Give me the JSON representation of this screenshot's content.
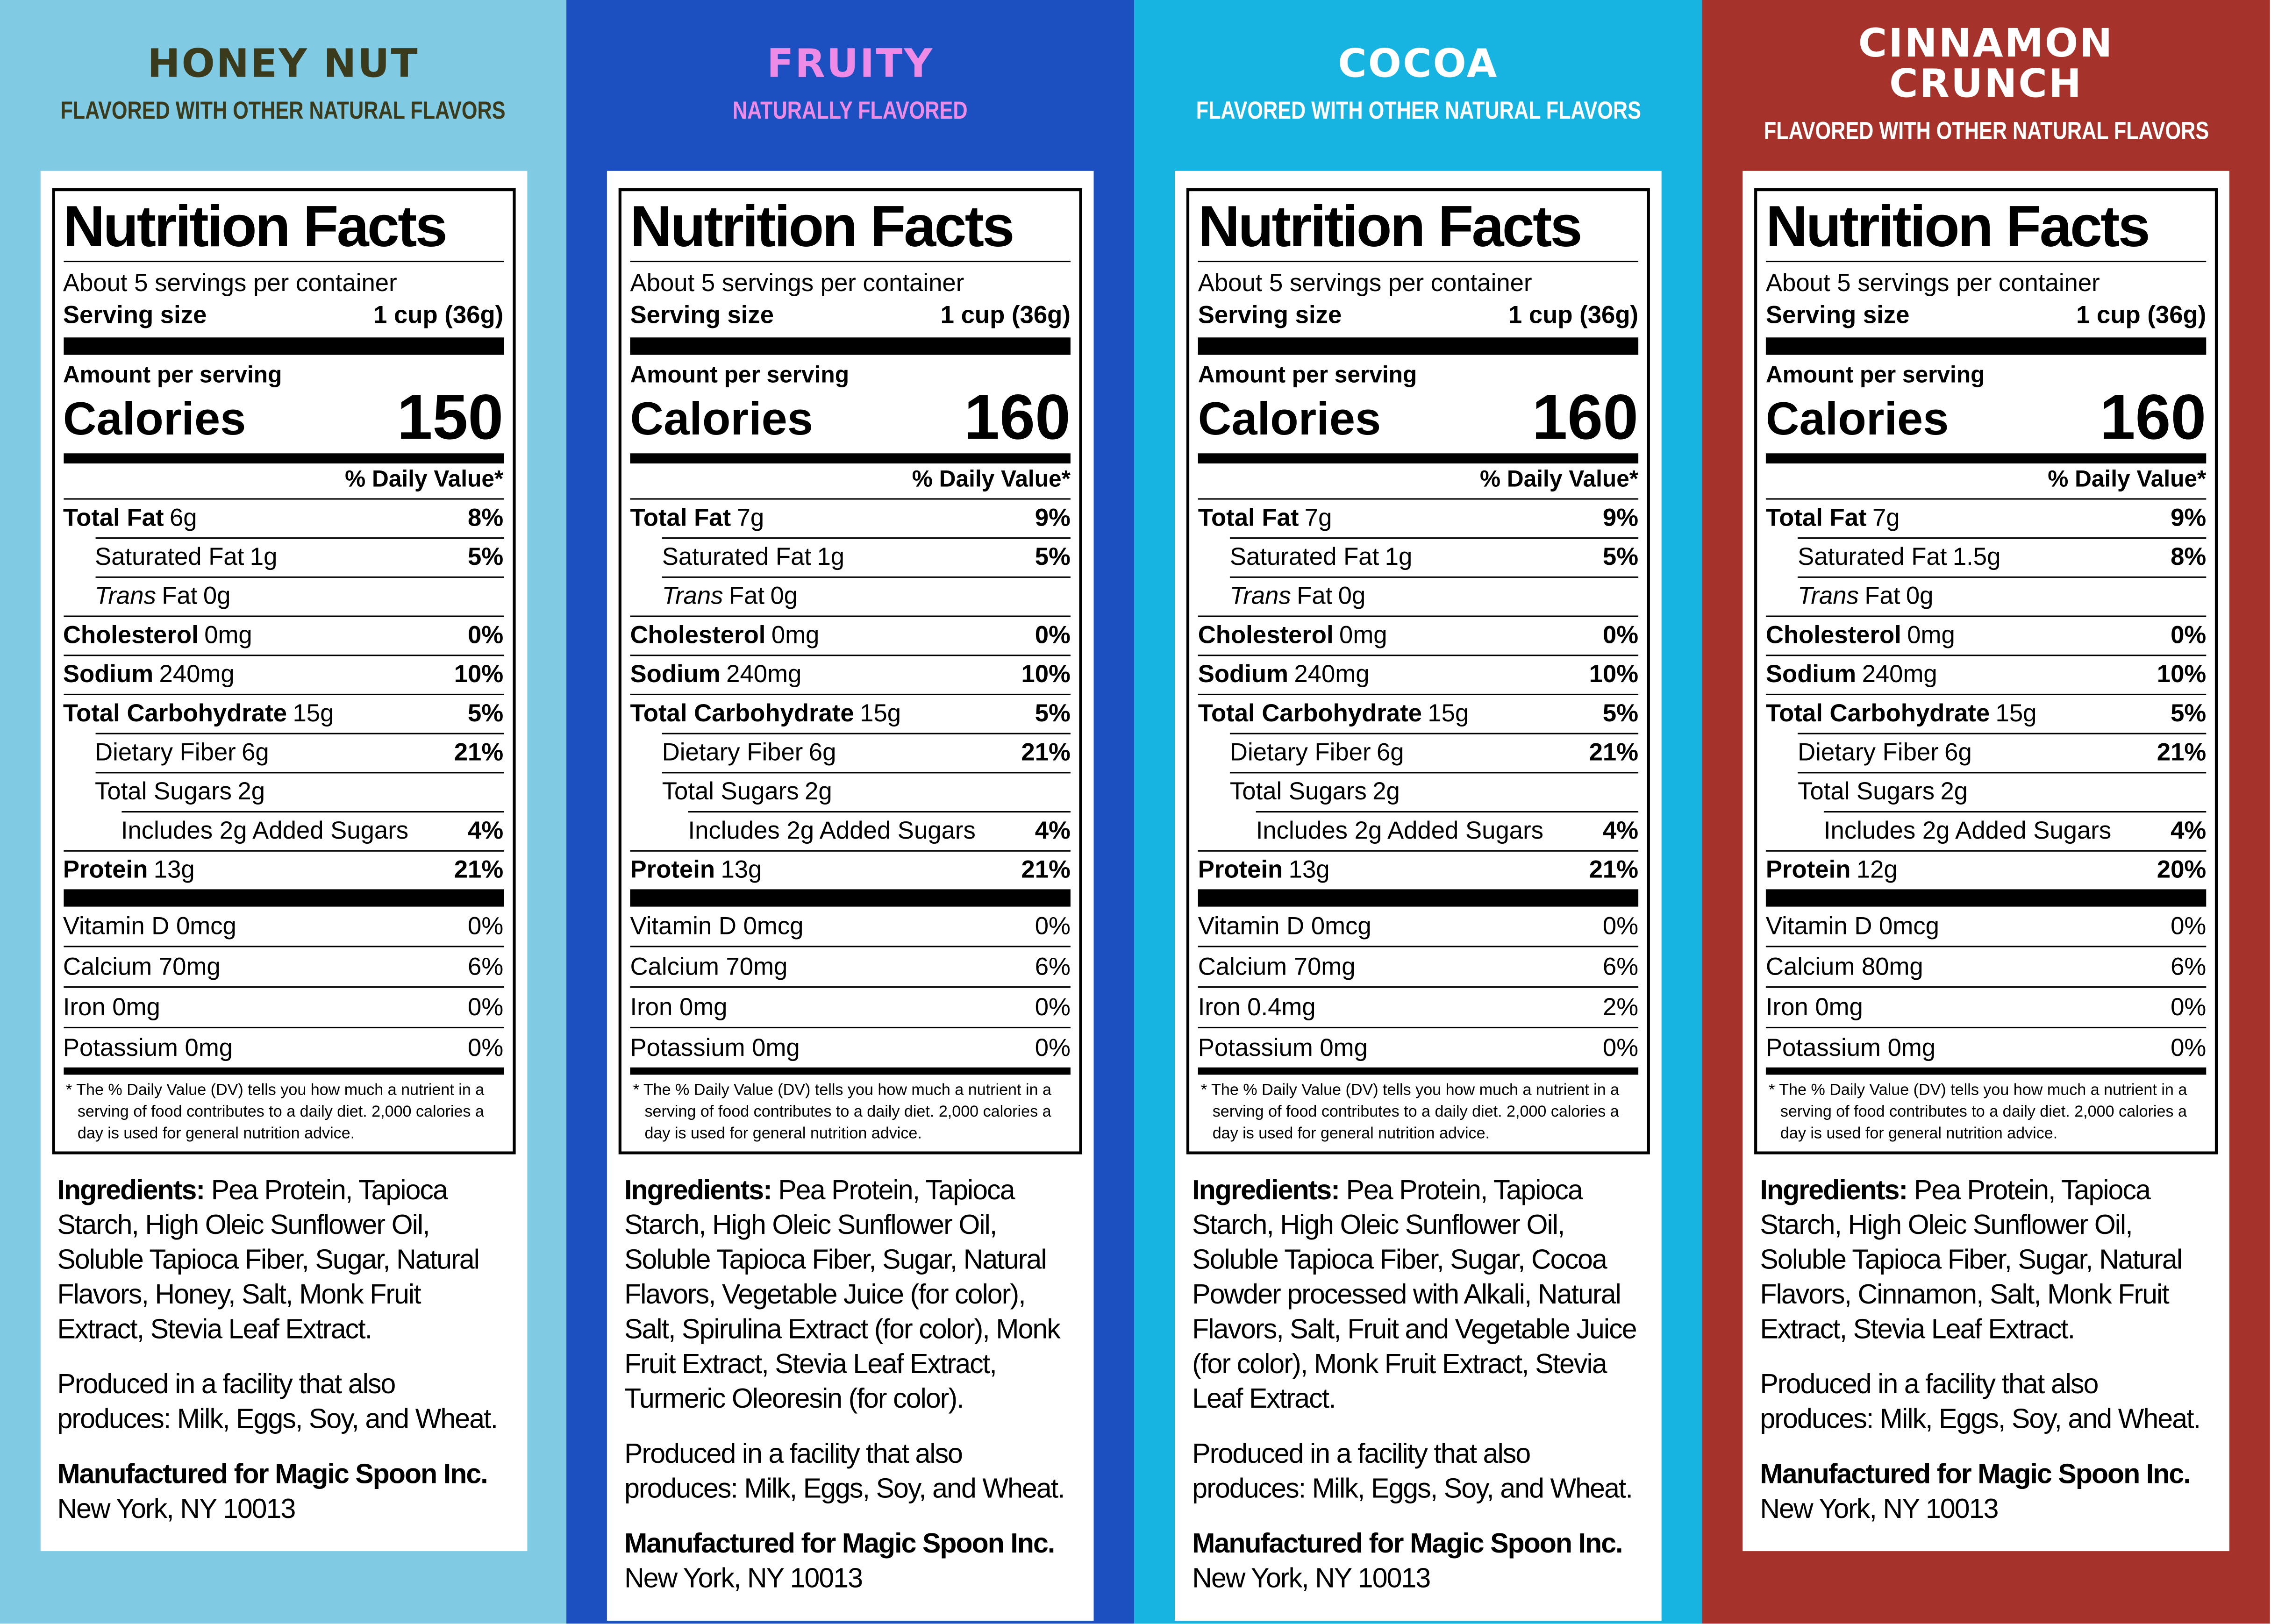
{
  "panels": [
    {
      "title": "HONEY NUT",
      "subtitle": "FLAVORED WITH OTHER NATURAL FLAVORS",
      "label": {
        "heading": "Nutrition Facts",
        "servings": "About 5 servings per container",
        "serving_size_label": "Serving size",
        "serving_size": "1 cup (36g)",
        "amount_per_serving": "Amount per serving",
        "calories_label": "Calories",
        "calories": 150,
        "dv_header": "% Daily Value*",
        "nutrients": [
          {
            "name": "Total Fat",
            "amount": "6g",
            "dv": "8%",
            "sub": [
              {
                "name": "Saturated Fat",
                "amount": "1g",
                "dv": "5%"
              },
              {
                "name_italic": "Trans",
                "name": "Fat",
                "amount": "0g"
              }
            ]
          },
          {
            "name": "Cholesterol",
            "amount": "0mg",
            "dv": "0%"
          },
          {
            "name": "Sodium",
            "amount": "240mg",
            "dv": "10%"
          },
          {
            "name": "Total Carbohydrate",
            "amount": "15g",
            "dv": "5%",
            "sub": [
              {
                "name": "Dietary Fiber",
                "amount": "6g",
                "dv": "21%"
              },
              {
                "name": "Total Sugars",
                "amount": "2g",
                "sub": [
                  {
                    "name": "Includes 2g Added Sugars",
                    "dv": "4%"
                  }
                ]
              }
            ]
          },
          {
            "name": "Protein",
            "amount": "13g",
            "dv": "21%"
          }
        ],
        "micros": [
          {
            "name": "Vitamin D 0mcg",
            "dv": "0%"
          },
          {
            "name": "Calcium 70mg",
            "dv": "6%"
          },
          {
            "name": "Iron 0mg",
            "dv": "0%"
          },
          {
            "name": "Potassium 0mg",
            "dv": "0%"
          }
        ],
        "footnote": "* The % Daily Value (DV) tells you how much a nutrient in a serving of food contributes to a daily diet. 2,000 calories a day is used for general nutrition advice."
      },
      "ingredients_label": "Ingredients:",
      "ingredients": "Pea Protein, Tapioca Starch, High Oleic Sunflower Oil, Soluble Tapioca Fiber, Sugar, Natural Flavors, Honey, Salt, Monk Fruit Extract, Stevia Leaf Extract.",
      "facility": "Produced in a facility that also produces: Milk, Eggs, Soy, and Wheat.",
      "manufacturer": "Manufactured for Magic Spoon Inc.",
      "address": "New York, NY 10013"
    },
    {
      "title": "FRUITY",
      "subtitle": "NATURALLY FLAVORED",
      "label": {
        "heading": "Nutrition Facts",
        "servings": "About 5 servings per container",
        "serving_size_label": "Serving size",
        "serving_size": "1 cup (36g)",
        "amount_per_serving": "Amount per serving",
        "calories_label": "Calories",
        "calories": 160,
        "dv_header": "% Daily Value*",
        "nutrients": [
          {
            "name": "Total Fat",
            "amount": "7g",
            "dv": "9%",
            "sub": [
              {
                "name": "Saturated Fat",
                "amount": "1g",
                "dv": "5%"
              },
              {
                "name_italic": "Trans",
                "name": "Fat",
                "amount": "0g"
              }
            ]
          },
          {
            "name": "Cholesterol",
            "amount": "0mg",
            "dv": "0%"
          },
          {
            "name": "Sodium",
            "amount": "240mg",
            "dv": "10%"
          },
          {
            "name": "Total Carbohydrate",
            "amount": "15g",
            "dv": "5%",
            "sub": [
              {
                "name": "Dietary Fiber",
                "amount": "6g",
                "dv": "21%"
              },
              {
                "name": "Total Sugars",
                "amount": "2g",
                "sub": [
                  {
                    "name": "Includes 2g Added Sugars",
                    "dv": "4%"
                  }
                ]
              }
            ]
          },
          {
            "name": "Protein",
            "amount": "13g",
            "dv": "21%"
          }
        ],
        "micros": [
          {
            "name": "Vitamin D 0mcg",
            "dv": "0%"
          },
          {
            "name": "Calcium 70mg",
            "dv": "6%"
          },
          {
            "name": "Iron 0mg",
            "dv": "0%"
          },
          {
            "name": "Potassium 0mg",
            "dv": "0%"
          }
        ],
        "footnote": "* The % Daily Value (DV) tells you how much a nutrient in a serving of food contributes to a daily diet. 2,000 calories a day is used for general nutrition advice."
      },
      "ingredients_label": "Ingredients:",
      "ingredients": "Pea Protein, Tapioca Starch, High Oleic Sunflower Oil, Soluble Tapioca Fiber, Sugar, Natural Flavors, Vegetable Juice (for color), Salt, Spirulina Extract (for color), Monk Fruit Extract, Stevia Leaf Extract, Turmeric Oleoresin (for color).",
      "facility": "Produced in a facility that also produces: Milk, Eggs, Soy, and Wheat.",
      "manufacturer": "Manufactured for Magic Spoon Inc.",
      "address": "New York, NY 10013"
    },
    {
      "title": "COCOA",
      "subtitle": "FLAVORED WITH OTHER NATURAL FLAVORS",
      "label": {
        "heading": "Nutrition Facts",
        "servings": "About 5 servings per container",
        "serving_size_label": "Serving size",
        "serving_size": "1 cup (36g)",
        "amount_per_serving": "Amount per serving",
        "calories_label": "Calories",
        "calories": 160,
        "dv_header": "% Daily Value*",
        "nutrients": [
          {
            "name": "Total Fat",
            "amount": "7g",
            "dv": "9%",
            "sub": [
              {
                "name": "Saturated Fat",
                "amount": "1g",
                "dv": "5%"
              },
              {
                "name_italic": "Trans",
                "name": "Fat",
                "amount": "0g"
              }
            ]
          },
          {
            "name": "Cholesterol",
            "amount": "0mg",
            "dv": "0%"
          },
          {
            "name": "Sodium",
            "amount": "240mg",
            "dv": "10%"
          },
          {
            "name": "Total Carbohydrate",
            "amount": "15g",
            "dv": "5%",
            "sub": [
              {
                "name": "Dietary Fiber",
                "amount": "6g",
                "dv": "21%"
              },
              {
                "name": "Total Sugars",
                "amount": "2g",
                "sub": [
                  {
                    "name": "Includes 2g Added Sugars",
                    "dv": "4%"
                  }
                ]
              }
            ]
          },
          {
            "name": "Protein",
            "amount": "13g",
            "dv": "21%"
          }
        ],
        "micros": [
          {
            "name": "Vitamin D 0mcg",
            "dv": "0%"
          },
          {
            "name": "Calcium 70mg",
            "dv": "6%"
          },
          {
            "name": "Iron 0.4mg",
            "dv": "2%"
          },
          {
            "name": "Potassium 0mg",
            "dv": "0%"
          }
        ],
        "footnote": "* The % Daily Value (DV) tells you how much a nutrient in a serving of food contributes to a daily diet. 2,000 calories a day is used for general nutrition advice."
      },
      "ingredients_label": "Ingredients:",
      "ingredients": "Pea Protein, Tapioca Starch, High Oleic Sunflower Oil, Soluble Tapioca Fiber, Sugar, Cocoa Powder processed with Alkali, Natural Flavors, Salt, Fruit and Vegetable Juice (for color), Monk Fruit Extract, Stevia Leaf Extract.",
      "facility": "Produced in a facility that also produces: Milk, Eggs, Soy, and Wheat.",
      "manufacturer": "Manufactured for Magic Spoon Inc.",
      "address": "New York, NY 10013"
    },
    {
      "title": "CINNAMON CRUNCH",
      "subtitle": "FLAVORED WITH OTHER NATURAL FLAVORS",
      "label": {
        "heading": "Nutrition Facts",
        "servings": "About 5 servings per container",
        "serving_size_label": "Serving size",
        "serving_size": "1 cup (36g)",
        "amount_per_serving": "Amount per serving",
        "calories_label": "Calories",
        "calories": 160,
        "dv_header": "% Daily Value*",
        "nutrients": [
          {
            "name": "Total Fat",
            "amount": "7g",
            "dv": "9%",
            "sub": [
              {
                "name": "Saturated Fat",
                "amount": "1.5g",
                "dv": "8%"
              },
              {
                "name_italic": "Trans",
                "name": "Fat",
                "amount": "0g"
              }
            ]
          },
          {
            "name": "Cholesterol",
            "amount": "0mg",
            "dv": "0%"
          },
          {
            "name": "Sodium",
            "amount": "240mg",
            "dv": "10%"
          },
          {
            "name": "Total Carbohydrate",
            "amount": "15g",
            "dv": "5%",
            "sub": [
              {
                "name": "Dietary Fiber",
                "amount": "6g",
                "dv": "21%"
              },
              {
                "name": "Total Sugars",
                "amount": "2g",
                "sub": [
                  {
                    "name": "Includes 2g Added Sugars",
                    "dv": "4%"
                  }
                ]
              }
            ]
          },
          {
            "name": "Protein",
            "amount": "12g",
            "dv": "20%"
          }
        ],
        "micros": [
          {
            "name": "Vitamin D 0mcg",
            "dv": "0%"
          },
          {
            "name": "Calcium 80mg",
            "dv": "6%"
          },
          {
            "name": "Iron 0mg",
            "dv": "0%"
          },
          {
            "name": "Potassium 0mg",
            "dv": "0%"
          }
        ],
        "footnote": "* The % Daily Value (DV) tells you how much a nutrient in a serving of food contributes to a daily diet. 2,000 calories a day is used for general nutrition advice."
      },
      "ingredients_label": "Ingredients:",
      "ingredients": "Pea Protein, Tapioca Starch, High Oleic Sunflower Oil, Soluble Tapioca Fiber, Sugar, Natural Flavors, Cinnamon, Salt, Monk Fruit Extract, Stevia Leaf Extract.",
      "facility": "Produced in a facility that also produces: Milk, Eggs, Soy, and Wheat.",
      "manufacturer": "Manufactured for Magic Spoon Inc.",
      "address": "New York, NY 10013"
    }
  ]
}
